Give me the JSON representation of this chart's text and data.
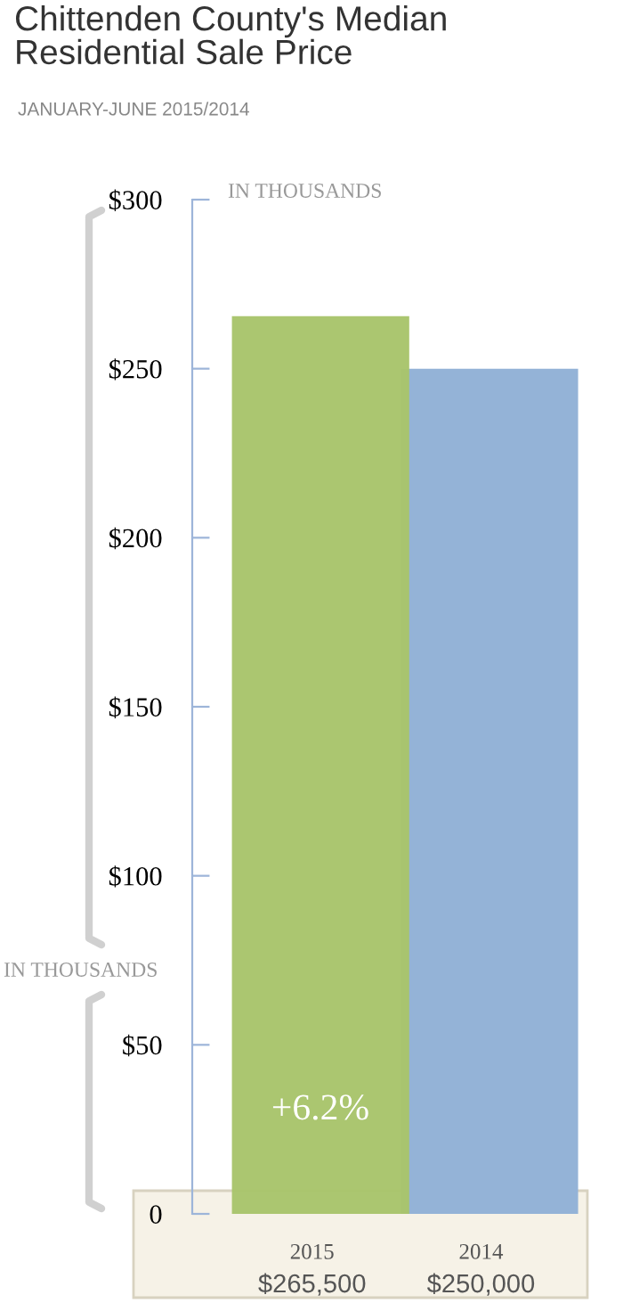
{
  "chart_data": {
    "type": "bar",
    "title": "Chittenden County's Median Residential Sale Price",
    "subtitle": "JANUARY-JUNE 2015/2014",
    "ylabel": "IN THOUSANDS",
    "categories": [
      "2015",
      "2014"
    ],
    "values": [
      265.5,
      250
    ],
    "colors": [
      "#a8c46b",
      "#94b3d7"
    ],
    "annotations": [
      "IN THOUSANDS",
      "+6.2%",
      "$265,500",
      "$250,000"
    ],
    "ylim": [
      0,
      300
    ],
    "yticks": [
      0,
      {
        "value": 50,
        "label": "$50"
      },
      {
        "value": 100,
        "label": "$100"
      },
      {
        "value": 150,
        "label": "$150"
      },
      {
        "value": 200,
        "label": "$200"
      },
      {
        "value": 250,
        "label": "$250"
      },
      {
        "value": 300,
        "label": "$300"
      }
    ],
    "grid": false
  }
}
